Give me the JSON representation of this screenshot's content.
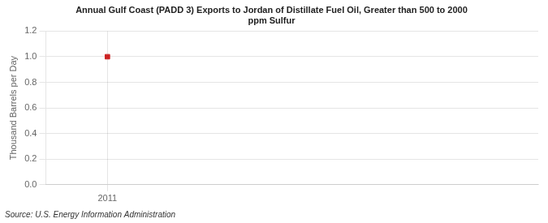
{
  "chart_data": {
    "type": "scatter",
    "title": "Annual Gulf Coast (PADD 3) Exports to Jordan of Distillate Fuel Oil, Greater than 500 to 2000\nppm Sulfur",
    "y_label": "Thousand Barrels per Day",
    "source": "Source: U.S. Energy Information Administration",
    "x": [
      2011
    ],
    "values": [
      1.0
    ],
    "color": "#cc2222",
    "marker": "square",
    "xlim": [
      2010.5,
      2014.5
    ],
    "xticks": [
      2011
    ],
    "ylim": [
      0.0,
      1.2
    ],
    "yticks": [
      {
        "value": 0,
        "label": "0.0"
      },
      0.2,
      0.4,
      0.6,
      0.8,
      {
        "value": 1,
        "label": "1.0"
      },
      1.2
    ],
    "grid": true
  }
}
